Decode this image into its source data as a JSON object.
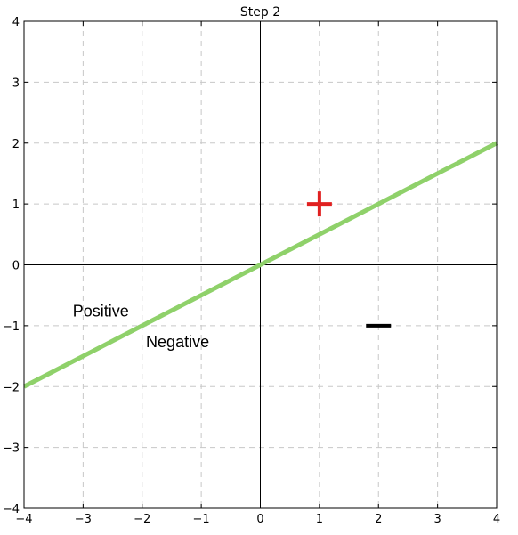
{
  "chart_data": {
    "type": "line",
    "title": "Step 2",
    "xlabel": "",
    "ylabel": "",
    "xlim": [
      -4,
      4
    ],
    "ylim": [
      -4,
      4
    ],
    "x_ticks": [
      -4,
      -3,
      -2,
      -1,
      0,
      1,
      2,
      3,
      4
    ],
    "y_ticks": [
      -4,
      -3,
      -2,
      -1,
      0,
      1,
      2,
      3,
      4
    ],
    "tick_labels_x": [
      "−4",
      "−3",
      "−2",
      "−1",
      "0",
      "1",
      "2",
      "3",
      "4"
    ],
    "tick_labels_y": [
      "−4",
      "−3",
      "−2",
      "−1",
      "0",
      "1",
      "2",
      "3",
      "4"
    ],
    "grid": true,
    "axes_lines": "x=0 and y=0 drawn in black",
    "series": [
      {
        "x": [
          -4,
          4
        ],
        "y": [
          -2,
          2
        ],
        "color": "#8fd16a"
      }
    ],
    "points": [
      {
        "x": 1,
        "y": 1,
        "marker": "plus",
        "color": "#e02020"
      },
      {
        "x": 2,
        "y": -1,
        "marker": "minus",
        "color": "#000000"
      }
    ],
    "annotations": [
      {
        "text": "Positive",
        "x": -2.7,
        "y": -0.85
      },
      {
        "text": "Negative",
        "x": -1.4,
        "y": -1.35
      }
    ]
  }
}
